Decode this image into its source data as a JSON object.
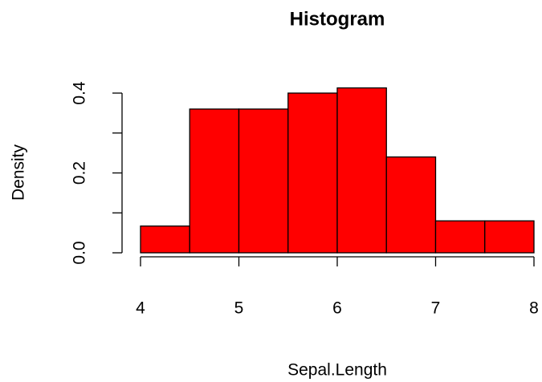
{
  "chart_data": {
    "type": "histogram",
    "title": "Histogram",
    "x_label": "Sepal.Length",
    "y_label": "Density",
    "bins": [
      4,
      4.5,
      5,
      5.5,
      6,
      6.5,
      7,
      7.5,
      8
    ],
    "values": [
      0.067,
      0.36,
      0.36,
      0.4,
      0.413,
      0.24,
      0.08,
      0.08
    ],
    "color": "#ff0000",
    "xlim": [
      4,
      8
    ],
    "xticks": [
      4,
      5,
      6,
      7,
      8
    ],
    "ylim": [
      0,
      0.42
    ],
    "yticks": [
      {
        "value": 0,
        "label": "0.0"
      },
      0.2,
      0.4
    ],
    "yminor_ticks": [
      0.1,
      0.3
    ],
    "grid": false
  }
}
